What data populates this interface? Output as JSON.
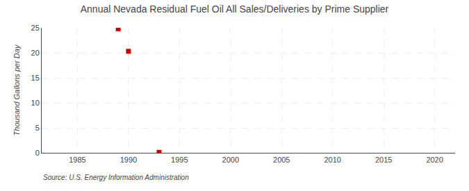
{
  "chart_data": {
    "type": "scatter",
    "title": "Annual Nevada Residual Fuel Oil All Sales/Deliveries by Prime Supplier",
    "y_label": "Thousand Gallons per Day",
    "annotations": [
      "Source: U.S. Energy Information Administration"
    ],
    "x": [
      1989,
      1990,
      1993
    ],
    "values": [
      24.8,
      20.3,
      0.1
    ],
    "color": "#cc0000",
    "marker": "square",
    "xlim": [
      1981.5,
      2022
    ],
    "xticks": [
      1985,
      1990,
      1995,
      2000,
      2005,
      2010,
      2015,
      2020
    ],
    "ylim": [
      0,
      25
    ],
    "yticks": [
      0,
      5,
      10,
      15,
      20,
      25
    ],
    "grid": true
  }
}
